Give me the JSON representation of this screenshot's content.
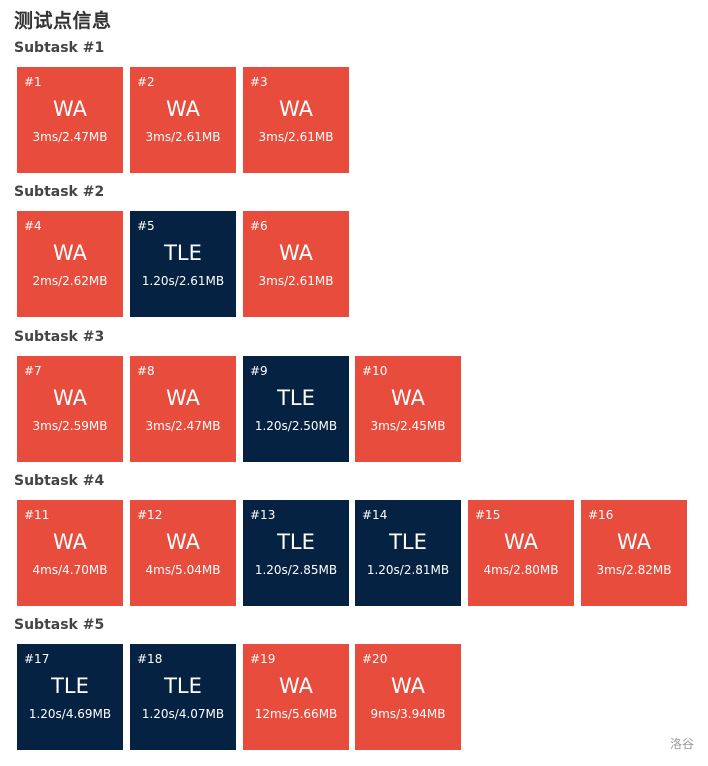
{
  "title": "测试点信息",
  "status_colors": {
    "WA": "#e74c3c",
    "TLE": "#052242"
  },
  "subtasks": [
    {
      "title": "Subtask #1",
      "cases": [
        {
          "id": "#1",
          "status": "WA",
          "info": "3ms/2.47MB"
        },
        {
          "id": "#2",
          "status": "WA",
          "info": "3ms/2.61MB"
        },
        {
          "id": "#3",
          "status": "WA",
          "info": "3ms/2.61MB"
        }
      ]
    },
    {
      "title": "Subtask #2",
      "cases": [
        {
          "id": "#4",
          "status": "WA",
          "info": "2ms/2.62MB"
        },
        {
          "id": "#5",
          "status": "TLE",
          "info": "1.20s/2.61MB"
        },
        {
          "id": "#6",
          "status": "WA",
          "info": "3ms/2.61MB"
        }
      ]
    },
    {
      "title": "Subtask #3",
      "cases": [
        {
          "id": "#7",
          "status": "WA",
          "info": "3ms/2.59MB"
        },
        {
          "id": "#8",
          "status": "WA",
          "info": "3ms/2.47MB"
        },
        {
          "id": "#9",
          "status": "TLE",
          "info": "1.20s/2.50MB"
        },
        {
          "id": "#10",
          "status": "WA",
          "info": "3ms/2.45MB"
        }
      ]
    },
    {
      "title": "Subtask #4",
      "cases": [
        {
          "id": "#11",
          "status": "WA",
          "info": "4ms/4.70MB"
        },
        {
          "id": "#12",
          "status": "WA",
          "info": "4ms/5.04MB"
        },
        {
          "id": "#13",
          "status": "TLE",
          "info": "1.20s/2.85MB"
        },
        {
          "id": "#14",
          "status": "TLE",
          "info": "1.20s/2.81MB"
        },
        {
          "id": "#15",
          "status": "WA",
          "info": "4ms/2.80MB"
        },
        {
          "id": "#16",
          "status": "WA",
          "info": "3ms/2.82MB"
        }
      ]
    },
    {
      "title": "Subtask #5",
      "cases": [
        {
          "id": "#17",
          "status": "TLE",
          "info": "1.20s/4.69MB"
        },
        {
          "id": "#18",
          "status": "TLE",
          "info": "1.20s/4.07MB"
        },
        {
          "id": "#19",
          "status": "WA",
          "info": "12ms/5.66MB"
        },
        {
          "id": "#20",
          "status": "WA",
          "info": "9ms/3.94MB"
        }
      ]
    }
  ],
  "watermark": "洛谷"
}
